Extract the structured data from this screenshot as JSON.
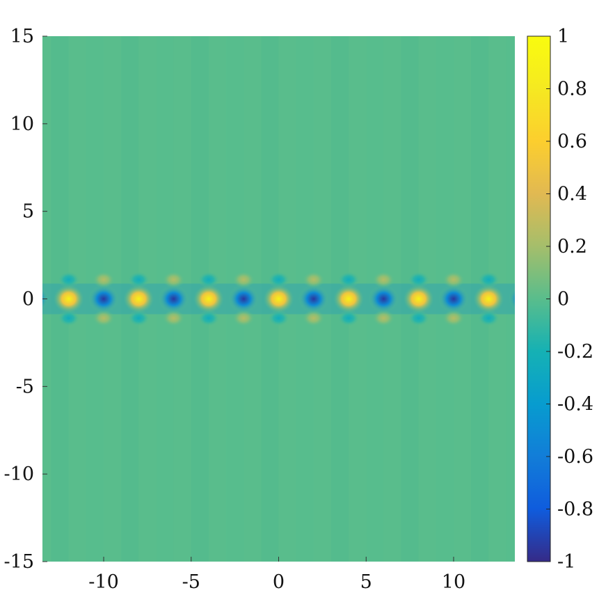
{
  "chart_data": {
    "type": "heatmap",
    "title": "",
    "xlabel": "",
    "ylabel": "",
    "xlim": [
      -13.5,
      13.5
    ],
    "ylim": [
      -15,
      15
    ],
    "x_ticks": [
      -10,
      -5,
      0,
      5,
      10
    ],
    "x_tick_labels": [
      "-10",
      "-5",
      "0",
      "5",
      "10"
    ],
    "y_ticks": [
      -15,
      -10,
      -5,
      0,
      5,
      10,
      15
    ],
    "y_tick_labels": [
      "-15",
      "-10",
      "-5",
      "0",
      "5",
      "10",
      "15"
    ],
    "colorbar": {
      "range": [
        -1,
        1
      ],
      "ticks": [
        -1,
        -0.8,
        -0.6,
        -0.4,
        -0.2,
        0,
        0.2,
        0.4,
        0.6,
        0.8,
        1
      ],
      "tick_labels": [
        "-1",
        "-0.8",
        "-0.6",
        "-0.4",
        "-0.2",
        "0",
        "0.2",
        "0.4",
        "0.6",
        "0.8",
        "1"
      ],
      "colormap": "parula"
    },
    "background_value": 0,
    "field_description_values": {
      "row_y": 0,
      "period_x": 4,
      "peaks": [
        {
          "x": -12,
          "y": 0,
          "value": 0.85
        },
        {
          "x": -8,
          "y": 0,
          "value": 0.85
        },
        {
          "x": -4,
          "y": 0,
          "value": 0.85
        },
        {
          "x": 0,
          "y": 0,
          "value": 0.85
        },
        {
          "x": 4,
          "y": 0,
          "value": 0.85
        },
        {
          "x": 8,
          "y": 0,
          "value": 0.85
        },
        {
          "x": 12,
          "y": 0,
          "value": 0.85
        }
      ],
      "troughs": [
        {
          "x": -10,
          "y": 0,
          "value": -0.9
        },
        {
          "x": -6,
          "y": 0,
          "value": -0.9
        },
        {
          "x": -2,
          "y": 0,
          "value": -0.9
        },
        {
          "x": 2,
          "y": 0,
          "value": -0.9
        },
        {
          "x": 6,
          "y": 0,
          "value": -0.9
        },
        {
          "x": 10,
          "y": 0,
          "value": -0.9
        }
      ]
    }
  }
}
